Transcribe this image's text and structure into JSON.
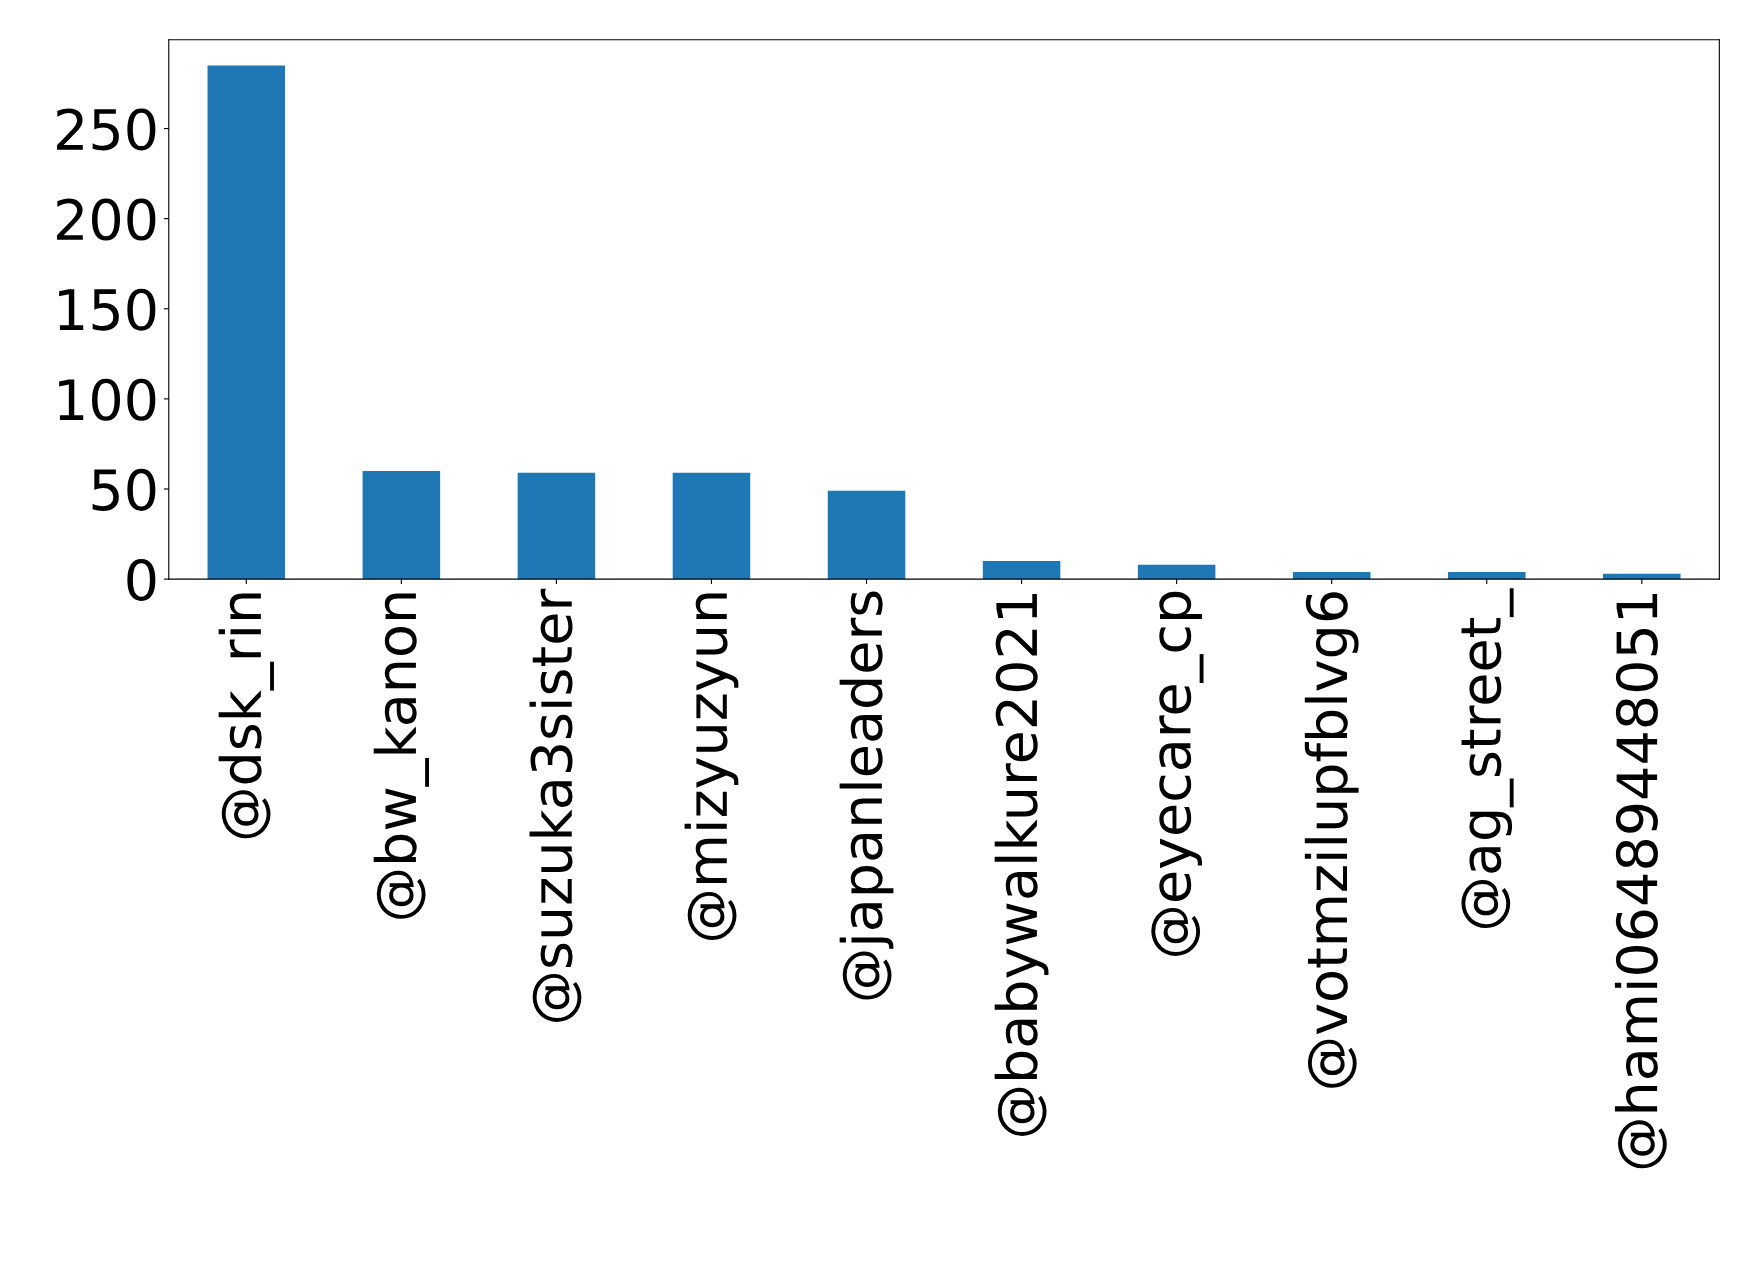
{
  "chart_data": {
    "type": "bar",
    "categories": [
      "@dsk_rin",
      "@bw_kanon",
      "@suzuka3sister",
      "@mizyuzyun",
      "@japanleaders",
      "@babywalkure2021",
      "@eyecare_cp",
      "@votmzilupfblvg6",
      "@ag_street_",
      "@hami06489448051"
    ],
    "values": [
      285,
      60,
      59,
      59,
      49,
      10,
      8,
      4,
      4,
      3
    ],
    "color": "#1f77b4",
    "ylim": [
      0,
      299.25
    ],
    "yticks": [
      0,
      50,
      100,
      150,
      200,
      250
    ],
    "grid": false,
    "legend": false
  }
}
